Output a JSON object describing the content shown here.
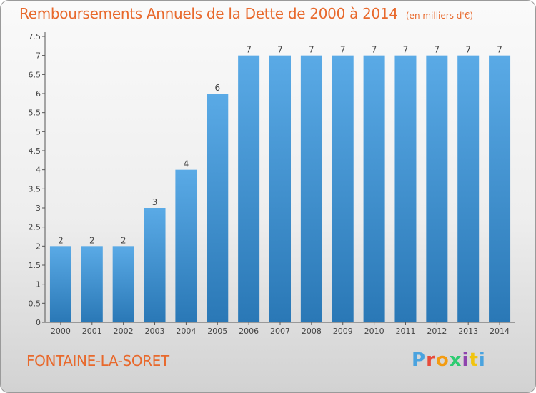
{
  "title": "Remboursements Annuels de la Dette de 2000 à 2014",
  "unit_note": "(en milliers d'€)",
  "commune": "FONTAINE-LA-SORET",
  "logo": {
    "text": "Proxiti",
    "letters": [
      "P",
      "r",
      "o",
      "x",
      "i",
      "t",
      "i"
    ]
  },
  "colors": {
    "accent": "#e8692c",
    "bar_light": "#5aaae6",
    "bar_dark": "#2a78b6"
  },
  "chart_data": {
    "type": "bar",
    "categories": [
      "2000",
      "2001",
      "2002",
      "2003",
      "2004",
      "2005",
      "2006",
      "2007",
      "2008",
      "2009",
      "2010",
      "2011",
      "2012",
      "2013",
      "2014"
    ],
    "values": [
      2,
      2,
      2,
      3,
      4,
      6,
      7,
      7,
      7,
      7,
      7,
      7,
      7,
      7,
      7
    ],
    "data_labels": [
      "2",
      "2",
      "2",
      "3",
      "4",
      "6",
      "7",
      "7",
      "7",
      "7",
      "7",
      "7",
      "7",
      "7",
      "7"
    ],
    "y_ticks": [
      "0",
      "0.5",
      "1",
      "1.5",
      "2",
      "2.5",
      "3",
      "3.5",
      "4",
      "4.5",
      "5",
      "5.5",
      "6",
      "6.5",
      "7",
      "7.5"
    ],
    "ylim": [
      0,
      7.5
    ],
    "grid": false,
    "title": "Remboursements Annuels de la Dette de 2000 à 2014",
    "xlabel": "",
    "ylabel": ""
  }
}
